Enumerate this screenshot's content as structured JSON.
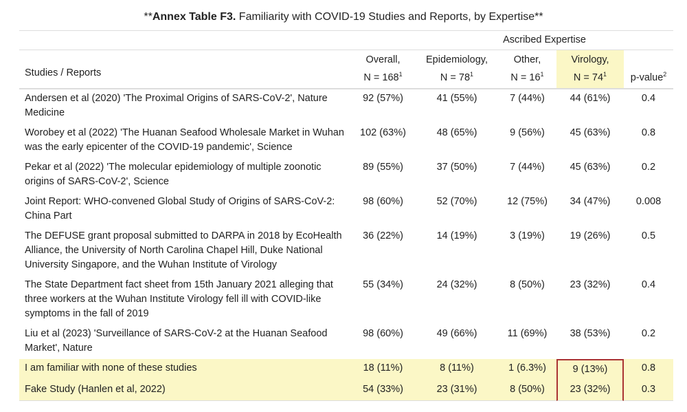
{
  "title": {
    "prefix": "**",
    "bold": "Annex Table F3.",
    "rest": " Familiarity with COVID-19 Studies and Reports, by Expertise**"
  },
  "table": {
    "spanner": "Ascribed Expertise",
    "columns": [
      {
        "name": "Studies / Reports"
      },
      {
        "name": "Overall,",
        "n": "N = 168",
        "note": "1"
      },
      {
        "name": "Epidemiology,",
        "n": "N = 78",
        "note": "1"
      },
      {
        "name": "Other,",
        "n": "N = 16",
        "note": "1"
      },
      {
        "name": "Virology,",
        "n": "N = 74",
        "note": "1"
      },
      {
        "name": "p-value",
        "note": "2"
      }
    ],
    "rows": [
      [
        "Andersen et al (2020) 'The Proximal Origins of SARS-CoV-2', Nature Medicine",
        "92 (57%)",
        "41 (55%)",
        "7 (44%)",
        "44 (61%)",
        "0.4"
      ],
      [
        "Worobey et al (2022) 'The Huanan Seafood Wholesale Market in Wuhan was the early epicenter of the COVID-19 pandemic', Science",
        "102 (63%)",
        "48 (65%)",
        "9 (56%)",
        "45 (63%)",
        "0.8"
      ],
      [
        "Pekar et al (2022) 'The molecular epidemiology of multiple zoonotic origins of SARS-CoV-2', Science",
        "89 (55%)",
        "37 (50%)",
        "7 (44%)",
        "45 (63%)",
        "0.2"
      ],
      [
        "Joint Report: WHO-convened Global Study of Origins of SARS-CoV-2: China Part",
        "98 (60%)",
        "52 (70%)",
        "12 (75%)",
        "34 (47%)",
        "0.008"
      ],
      [
        "The DEFUSE grant proposal submitted to DARPA in 2018 by EcoHealth Alliance, the University of North Carolina Chapel Hill, Duke National University Singapore, and the Wuhan Institute of Virology",
        "36 (22%)",
        "14 (19%)",
        "3 (19%)",
        "19 (26%)",
        "0.5"
      ],
      [
        "The State Department fact sheet from 15th January 2021 alleging that three workers at the Wuhan Institute Virology fell ill with COVID-like symptoms in the fall of 2019",
        "55 (34%)",
        "24 (32%)",
        "8 (50%)",
        "23 (32%)",
        "0.4"
      ],
      [
        "Liu et al (2023) 'Surveillance of SARS-CoV-2 at the Huanan Seafood Market', Nature",
        "98 (60%)",
        "49 (66%)",
        "11 (69%)",
        "38 (53%)",
        "0.2"
      ],
      [
        "I am familiar with none of these studies",
        "18 (11%)",
        "8 (11%)",
        "1 (6.3%)",
        "9 (13%)",
        "0.8"
      ],
      [
        "Fake Study (Hanlen et al, 2022)",
        "54 (33%)",
        "23 (31%)",
        "8 (50%)",
        "23 (32%)",
        "0.3"
      ]
    ]
  }
}
